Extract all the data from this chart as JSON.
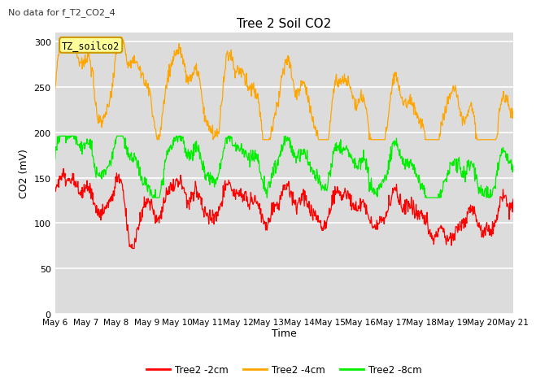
{
  "title": "Tree 2 Soil CO2",
  "subtitle": "No data for f_T2_CO2_4",
  "xlabel": "Time",
  "ylabel": "CO2 (mV)",
  "ylim": [
    0,
    310
  ],
  "yticks": [
    0,
    50,
    100,
    150,
    200,
    250,
    300
  ],
  "bg_color": "#dcdcdc",
  "fig_color": "#ffffff",
  "box_label": "TZ_soilco2",
  "x_labels": [
    "May 6",
    "May 7",
    "May 8",
    "May 9",
    "May 10",
    "May 11",
    "May 12",
    "May 13",
    "May 14",
    "May 15",
    "May 16",
    "May 17",
    "May 18",
    "May 19",
    "May 20",
    "May 21"
  ],
  "legend": [
    {
      "label": "Tree2 -2cm",
      "color": "#ff0000"
    },
    {
      "label": "Tree2 -4cm",
      "color": "#ffa500"
    },
    {
      "label": "Tree2 -8cm",
      "color": "#00ee00"
    }
  ],
  "n_points": 960
}
